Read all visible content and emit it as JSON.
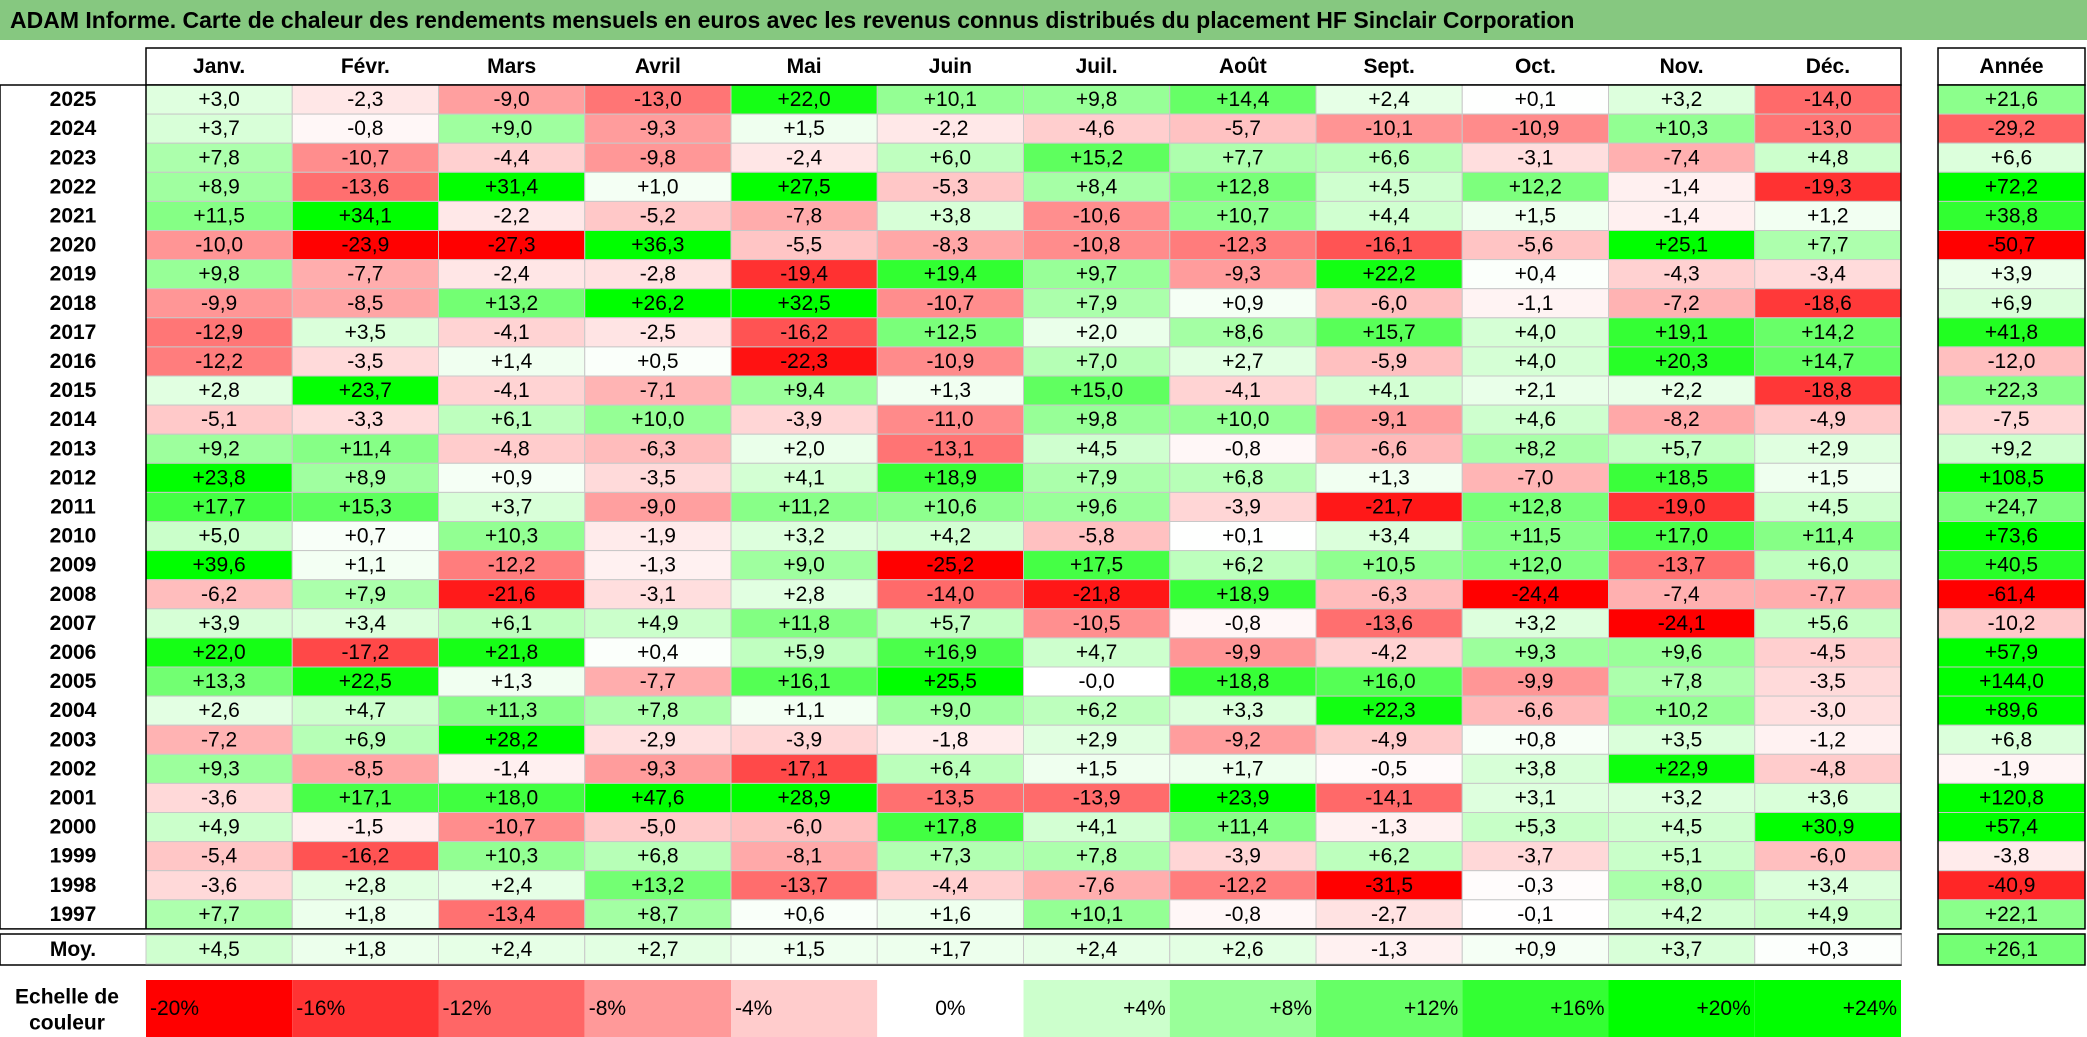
{
  "title": "ADAM Informe. Carte de chaleur des rendements mensuels en euros avec les revenus connus distribués du placement HF Sinclair Corporation",
  "chart_data": {
    "type": "heatmap",
    "months": [
      "Janv.",
      "Févr.",
      "Mars",
      "Avril",
      "Mai",
      "Juin",
      "Juil.",
      "Août",
      "Sept.",
      "Oct.",
      "Nov.",
      "Déc."
    ],
    "annual_header": "Année",
    "rows": [
      {
        "year": "2025",
        "values": [
          "+3,0",
          "-2,3",
          "-9,0",
          "-13,0",
          "+22,0",
          "+10,1",
          "+9,8",
          "+14,4",
          "+2,4",
          "+0,1",
          "+3,2",
          "-14,0"
        ],
        "annual": "+21,6"
      },
      {
        "year": "2024",
        "values": [
          "+3,7",
          "-0,8",
          "+9,0",
          "-9,3",
          "+1,5",
          "-2,2",
          "-4,6",
          "-5,7",
          "-10,1",
          "-10,9",
          "+10,3",
          "-13,0"
        ],
        "annual": "-29,2"
      },
      {
        "year": "2023",
        "values": [
          "+7,8",
          "-10,7",
          "-4,4",
          "-9,8",
          "-2,4",
          "+6,0",
          "+15,2",
          "+7,7",
          "+6,6",
          "-3,1",
          "-7,4",
          "+4,8"
        ],
        "annual": "+6,6"
      },
      {
        "year": "2022",
        "values": [
          "+8,9",
          "-13,6",
          "+31,4",
          "+1,0",
          "+27,5",
          "-5,3",
          "+8,4",
          "+12,8",
          "+4,5",
          "+12,2",
          "-1,4",
          "-19,3"
        ],
        "annual": "+72,2"
      },
      {
        "year": "2021",
        "values": [
          "+11,5",
          "+34,1",
          "-2,2",
          "-5,2",
          "-7,8",
          "+3,8",
          "-10,6",
          "+10,7",
          "+4,4",
          "+1,5",
          "-1,4",
          "+1,2"
        ],
        "annual": "+38,8"
      },
      {
        "year": "2020",
        "values": [
          "-10,0",
          "-23,9",
          "-27,3",
          "+36,3",
          "-5,5",
          "-8,3",
          "-10,8",
          "-12,3",
          "-16,1",
          "-5,6",
          "+25,1",
          "+7,7"
        ],
        "annual": "-50,7"
      },
      {
        "year": "2019",
        "values": [
          "+9,8",
          "-7,7",
          "-2,4",
          "-2,8",
          "-19,4",
          "+19,4",
          "+9,7",
          "-9,3",
          "+22,2",
          "+0,4",
          "-4,3",
          "-3,4"
        ],
        "annual": "+3,9"
      },
      {
        "year": "2018",
        "values": [
          "-9,9",
          "-8,5",
          "+13,2",
          "+26,2",
          "+32,5",
          "-10,7",
          "+7,9",
          "+0,9",
          "-6,0",
          "-1,1",
          "-7,2",
          "-18,6"
        ],
        "annual": "+6,9"
      },
      {
        "year": "2017",
        "values": [
          "-12,9",
          "+3,5",
          "-4,1",
          "-2,5",
          "-16,2",
          "+12,5",
          "+2,0",
          "+8,6",
          "+15,7",
          "+4,0",
          "+19,1",
          "+14,2"
        ],
        "annual": "+41,8"
      },
      {
        "year": "2016",
        "values": [
          "-12,2",
          "-3,5",
          "+1,4",
          "+0,5",
          "-22,3",
          "-10,9",
          "+7,0",
          "+2,7",
          "-5,9",
          "+4,0",
          "+20,3",
          "+14,7"
        ],
        "annual": "-12,0"
      },
      {
        "year": "2015",
        "values": [
          "+2,8",
          "+23,7",
          "-4,1",
          "-7,1",
          "+9,4",
          "+1,3",
          "+15,0",
          "-4,1",
          "+4,1",
          "+2,1",
          "+2,2",
          "-18,8"
        ],
        "annual": "+22,3"
      },
      {
        "year": "2014",
        "values": [
          "-5,1",
          "-3,3",
          "+6,1",
          "+10,0",
          "-3,9",
          "-11,0",
          "+9,8",
          "+10,0",
          "-9,1",
          "+4,6",
          "-8,2",
          "-4,9"
        ],
        "annual": "-7,5"
      },
      {
        "year": "2013",
        "values": [
          "+9,2",
          "+11,4",
          "-4,8",
          "-6,3",
          "+2,0",
          "-13,1",
          "+4,5",
          "-0,8",
          "-6,6",
          "+8,2",
          "+5,7",
          "+2,9"
        ],
        "annual": "+9,2"
      },
      {
        "year": "2012",
        "values": [
          "+23,8",
          "+8,9",
          "+0,9",
          "-3,5",
          "+4,1",
          "+18,9",
          "+7,9",
          "+6,8",
          "+1,3",
          "-7,0",
          "+18,5",
          "+1,5"
        ],
        "annual": "+108,5"
      },
      {
        "year": "2011",
        "values": [
          "+17,7",
          "+15,3",
          "+3,7",
          "-9,0",
          "+11,2",
          "+10,6",
          "+9,6",
          "-3,9",
          "-21,7",
          "+12,8",
          "-19,0",
          "+4,5"
        ],
        "annual": "+24,7"
      },
      {
        "year": "2010",
        "values": [
          "+5,0",
          "+0,7",
          "+10,3",
          "-1,9",
          "+3,2",
          "+4,2",
          "-5,8",
          "+0,1",
          "+3,4",
          "+11,5",
          "+17,0",
          "+11,4"
        ],
        "annual": "+73,6"
      },
      {
        "year": "2009",
        "values": [
          "+39,6",
          "+1,1",
          "-12,2",
          "-1,3",
          "+9,0",
          "-25,2",
          "+17,5",
          "+6,2",
          "+10,5",
          "+12,0",
          "-13,7",
          "+6,0"
        ],
        "annual": "+40,5"
      },
      {
        "year": "2008",
        "values": [
          "-6,2",
          "+7,9",
          "-21,6",
          "-3,1",
          "+2,8",
          "-14,0",
          "-21,8",
          "+18,9",
          "-6,3",
          "-24,4",
          "-7,4",
          "-7,7"
        ],
        "annual": "-61,4"
      },
      {
        "year": "2007",
        "values": [
          "+3,9",
          "+3,4",
          "+6,1",
          "+4,9",
          "+11,8",
          "+5,7",
          "-10,5",
          "-0,8",
          "-13,6",
          "+3,2",
          "-24,1",
          "+5,6"
        ],
        "annual": "-10,2"
      },
      {
        "year": "2006",
        "values": [
          "+22,0",
          "-17,2",
          "+21,8",
          "+0,4",
          "+5,9",
          "+16,9",
          "+4,7",
          "-9,9",
          "-4,2",
          "+9,3",
          "+9,6",
          "-4,5"
        ],
        "annual": "+57,9"
      },
      {
        "year": "2005",
        "values": [
          "+13,3",
          "+22,5",
          "+1,3",
          "-7,7",
          "+16,1",
          "+25,5",
          "-0,0",
          "+18,8",
          "+16,0",
          "-9,9",
          "+7,8",
          "-3,5"
        ],
        "annual": "+144,0"
      },
      {
        "year": "2004",
        "values": [
          "+2,6",
          "+4,7",
          "+11,3",
          "+7,8",
          "+1,1",
          "+9,0",
          "+6,2",
          "+3,3",
          "+22,3",
          "-6,6",
          "+10,2",
          "-3,0"
        ],
        "annual": "+89,6"
      },
      {
        "year": "2003",
        "values": [
          "-7,2",
          "+6,9",
          "+28,2",
          "-2,9",
          "-3,9",
          "-1,8",
          "+2,9",
          "-9,2",
          "-4,9",
          "+0,8",
          "+3,5",
          "-1,2"
        ],
        "annual": "+6,8"
      },
      {
        "year": "2002",
        "values": [
          "+9,3",
          "-8,5",
          "-1,4",
          "-9,3",
          "-17,1",
          "+6,4",
          "+1,5",
          "+1,7",
          "-0,5",
          "+3,8",
          "+22,9",
          "-4,8"
        ],
        "annual": "-1,9"
      },
      {
        "year": "2001",
        "values": [
          "-3,6",
          "+17,1",
          "+18,0",
          "+47,6",
          "+28,9",
          "-13,5",
          "-13,9",
          "+23,9",
          "-14,1",
          "+3,1",
          "+3,2",
          "+3,6"
        ],
        "annual": "+120,8"
      },
      {
        "year": "2000",
        "values": [
          "+4,9",
          "-1,5",
          "-10,7",
          "-5,0",
          "-6,0",
          "+17,8",
          "+4,1",
          "+11,4",
          "-1,3",
          "+5,3",
          "+4,5",
          "+30,9"
        ],
        "annual": "+57,4"
      },
      {
        "year": "1999",
        "values": [
          "-5,4",
          "-16,2",
          "+10,3",
          "+6,8",
          "-8,1",
          "+7,3",
          "+7,8",
          "-3,9",
          "+6,2",
          "-3,7",
          "+5,1",
          "-6,0"
        ],
        "annual": "-3,8"
      },
      {
        "year": "1998",
        "values": [
          "-3,6",
          "+2,8",
          "+2,4",
          "+13,2",
          "-13,7",
          "-4,4",
          "-7,6",
          "-12,2",
          "-31,5",
          "-0,3",
          "+8,0",
          "+3,4"
        ],
        "annual": "-40,9"
      },
      {
        "year": "1997",
        "values": [
          "+7,7",
          "+1,8",
          "-13,4",
          "+8,7",
          "+0,6",
          "+1,6",
          "+10,1",
          "-0,8",
          "-2,7",
          "-0,1",
          "+4,2",
          "+4,9"
        ],
        "annual": "+22,1"
      }
    ],
    "average": {
      "label": "Moy.",
      "values": [
        "+4,5",
        "+1,8",
        "+2,4",
        "+2,7",
        "+1,5",
        "+1,7",
        "+2,4",
        "+2,6",
        "-1,3",
        "+0,9",
        "+3,7",
        "+0,3"
      ],
      "annual": "+26,1"
    },
    "scale": {
      "label_line1": "Echelle de",
      "label_line2": "couleur",
      "items": [
        "-20%",
        "-16%",
        "-12%",
        "-8%",
        "-4%",
        "0%",
        "+4%",
        "+8%",
        "+12%",
        "+16%",
        "+20%",
        "+24%"
      ]
    },
    "colors": {
      "negative": "#ff0000",
      "neutral": "#ffffff",
      "positive": "#00ff00",
      "title_bg": "#86c880"
    }
  }
}
